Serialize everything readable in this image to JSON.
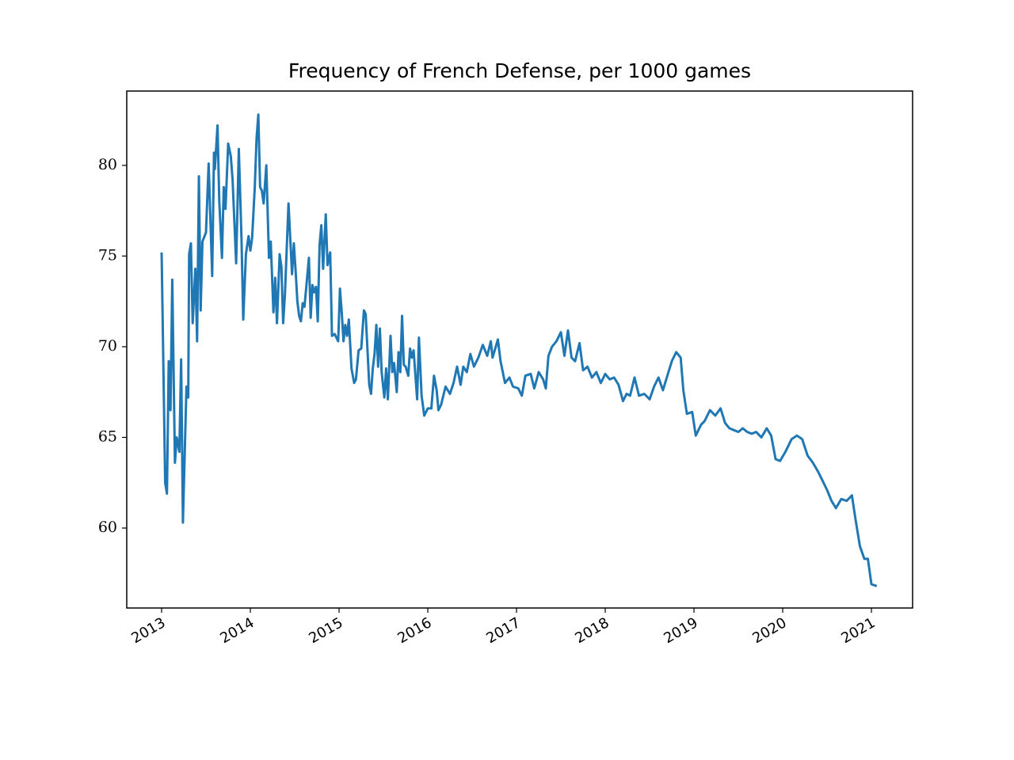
{
  "chart_data": {
    "type": "line",
    "title": "Frequency of French Defense, per 1000 games",
    "x": [
      2013.0,
      2013.04,
      2013.06,
      2013.08,
      2013.1,
      2013.12,
      2013.15,
      2013.17,
      2013.2,
      2013.22,
      2013.24,
      2013.28,
      2013.3,
      2013.31,
      2013.33,
      2013.35,
      2013.38,
      2013.4,
      2013.42,
      2013.44,
      2013.46,
      2013.5,
      2013.53,
      2013.57,
      2013.59,
      2013.6,
      2013.63,
      2013.65,
      2013.68,
      2013.7,
      2013.72,
      2013.75,
      2013.78,
      2013.8,
      2013.84,
      2013.87,
      2013.9,
      2013.92,
      2013.95,
      2013.98,
      2014.0,
      2014.02,
      2014.05,
      2014.07,
      2014.09,
      2014.11,
      2014.13,
      2014.15,
      2014.18,
      2014.21,
      2014.23,
      2014.26,
      2014.28,
      2014.3,
      2014.33,
      2014.35,
      2014.37,
      2014.39,
      2014.43,
      2014.47,
      2014.49,
      2014.51,
      2014.53,
      2014.55,
      2014.57,
      2014.59,
      2014.61,
      2014.66,
      2014.68,
      2014.7,
      2014.72,
      2014.74,
      2014.76,
      2014.78,
      2014.8,
      2014.82,
      2014.85,
      2014.87,
      2014.9,
      2014.92,
      2014.95,
      2014.99,
      2015.01,
      2015.03,
      2015.05,
      2015.07,
      2015.09,
      2015.11,
      2015.14,
      2015.17,
      2015.19,
      2015.22,
      2015.25,
      2015.28,
      2015.3,
      2015.34,
      2015.36,
      2015.38,
      2015.4,
      2015.42,
      2015.44,
      2015.46,
      2015.48,
      2015.51,
      2015.53,
      2015.55,
      2015.58,
      2015.6,
      2015.62,
      2015.65,
      2015.67,
      2015.69,
      2015.71,
      2015.73,
      2015.75,
      2015.78,
      2015.8,
      2015.82,
      2015.84,
      2015.88,
      2015.9,
      2015.93,
      2015.96,
      2016.0,
      2016.04,
      2016.07,
      2016.1,
      2016.12,
      2016.15,
      2016.2,
      2016.25,
      2016.29,
      2016.33,
      2016.37,
      2016.4,
      2016.44,
      2016.48,
      2016.52,
      2016.57,
      2016.62,
      2016.67,
      2016.71,
      2016.73,
      2016.79,
      2016.82,
      2016.87,
      2016.92,
      2016.96,
      2017.02,
      2017.06,
      2017.1,
      2017.16,
      2017.2,
      2017.25,
      2017.3,
      2017.33,
      2017.36,
      2017.4,
      2017.45,
      2017.5,
      2017.54,
      2017.58,
      2017.62,
      2017.66,
      2017.71,
      2017.75,
      2017.8,
      2017.85,
      2017.9,
      2017.95,
      2018.0,
      2018.05,
      2018.1,
      2018.15,
      2018.2,
      2018.24,
      2018.28,
      2018.33,
      2018.38,
      2018.44,
      2018.5,
      2018.55,
      2018.6,
      2018.65,
      2018.7,
      2018.75,
      2018.8,
      2018.85,
      2018.88,
      2018.92,
      2018.98,
      2019.02,
      2019.08,
      2019.12,
      2019.18,
      2019.24,
      2019.3,
      2019.35,
      2019.4,
      2019.45,
      2019.5,
      2019.55,
      2019.6,
      2019.65,
      2019.7,
      2019.76,
      2019.82,
      2019.87,
      2019.92,
      2019.97,
      2020.03,
      2020.1,
      2020.16,
      2020.22,
      2020.28,
      2020.34,
      2020.4,
      2020.45,
      2020.5,
      2020.55,
      2020.6,
      2020.66,
      2020.72,
      2020.78,
      2020.82,
      2020.87,
      2020.92,
      2020.96,
      2021.0,
      2021.06
    ],
    "values": [
      75.2,
      62.5,
      61.9,
      69.2,
      66.5,
      73.7,
      63.6,
      65.0,
      64.2,
      69.3,
      60.3,
      67.8,
      67.2,
      75.1,
      75.7,
      71.3,
      74.3,
      70.3,
      79.4,
      72.0,
      75.8,
      76.3,
      80.1,
      73.9,
      80.7,
      79.8,
      82.2,
      78.0,
      74.9,
      78.8,
      77.6,
      81.2,
      80.5,
      79.2,
      74.6,
      80.9,
      76.0,
      71.5,
      75.1,
      76.1,
      75.3,
      76.0,
      78.8,
      81.5,
      82.8,
      78.8,
      78.6,
      77.9,
      80.0,
      74.9,
      75.8,
      71.9,
      73.8,
      71.3,
      75.1,
      74.4,
      71.3,
      72.9,
      77.9,
      74.0,
      75.7,
      74.2,
      72.5,
      71.7,
      71.4,
      72.4,
      72.2,
      74.9,
      71.6,
      73.4,
      73.0,
      73.3,
      71.4,
      75.6,
      76.7,
      74.3,
      77.3,
      74.5,
      75.2,
      70.6,
      70.7,
      70.3,
      73.2,
      71.9,
      70.3,
      71.2,
      70.6,
      71.5,
      68.8,
      68.0,
      68.2,
      69.8,
      69.9,
      72.0,
      71.8,
      67.9,
      67.4,
      68.8,
      69.6,
      71.2,
      68.9,
      71.0,
      68.6,
      67.2,
      68.8,
      67.1,
      70.6,
      68.6,
      69.1,
      67.5,
      69.7,
      68.6,
      71.7,
      69.0,
      68.9,
      68.4,
      69.9,
      69.4,
      69.8,
      67.1,
      70.5,
      67.3,
      66.2,
      66.6,
      66.6,
      68.4,
      67.6,
      66.5,
      66.8,
      67.8,
      67.4,
      68.0,
      68.9,
      67.9,
      68.9,
      68.6,
      69.6,
      68.9,
      69.4,
      70.1,
      69.5,
      70.3,
      69.4,
      70.4,
      69.2,
      68.0,
      68.3,
      67.8,
      67.7,
      67.3,
      68.4,
      68.5,
      67.7,
      68.6,
      68.2,
      67.7,
      69.5,
      70.0,
      70.3,
      70.8,
      69.5,
      70.9,
      69.4,
      69.2,
      70.2,
      68.7,
      68.9,
      68.3,
      68.6,
      68.0,
      68.5,
      68.2,
      68.3,
      67.9,
      67.0,
      67.4,
      67.3,
      68.3,
      67.3,
      67.4,
      67.1,
      67.8,
      68.3,
      67.6,
      68.4,
      69.2,
      69.7,
      69.4,
      67.6,
      66.3,
      66.4,
      65.1,
      65.7,
      65.9,
      66.5,
      66.2,
      66.6,
      65.8,
      65.5,
      65.4,
      65.3,
      65.5,
      65.3,
      65.2,
      65.3,
      65.0,
      65.5,
      65.1,
      63.8,
      63.7,
      64.2,
      64.9,
      65.1,
      64.9,
      64.0,
      63.6,
      63.1,
      62.6,
      62.1,
      61.5,
      61.1,
      61.6,
      61.5,
      61.8,
      60.5,
      59.0,
      58.3,
      58.3,
      56.9,
      56.8
    ],
    "color": "#1f77b4",
    "xlim": [
      2012.607,
      2021.464
    ],
    "xticks": [
      2013,
      2014,
      2015,
      2016,
      2017,
      2018,
      2019,
      2020,
      2021
    ],
    "ylim": [
      55.59,
      84.1
    ],
    "yticks": [
      60,
      65,
      70,
      75,
      80
    ]
  }
}
